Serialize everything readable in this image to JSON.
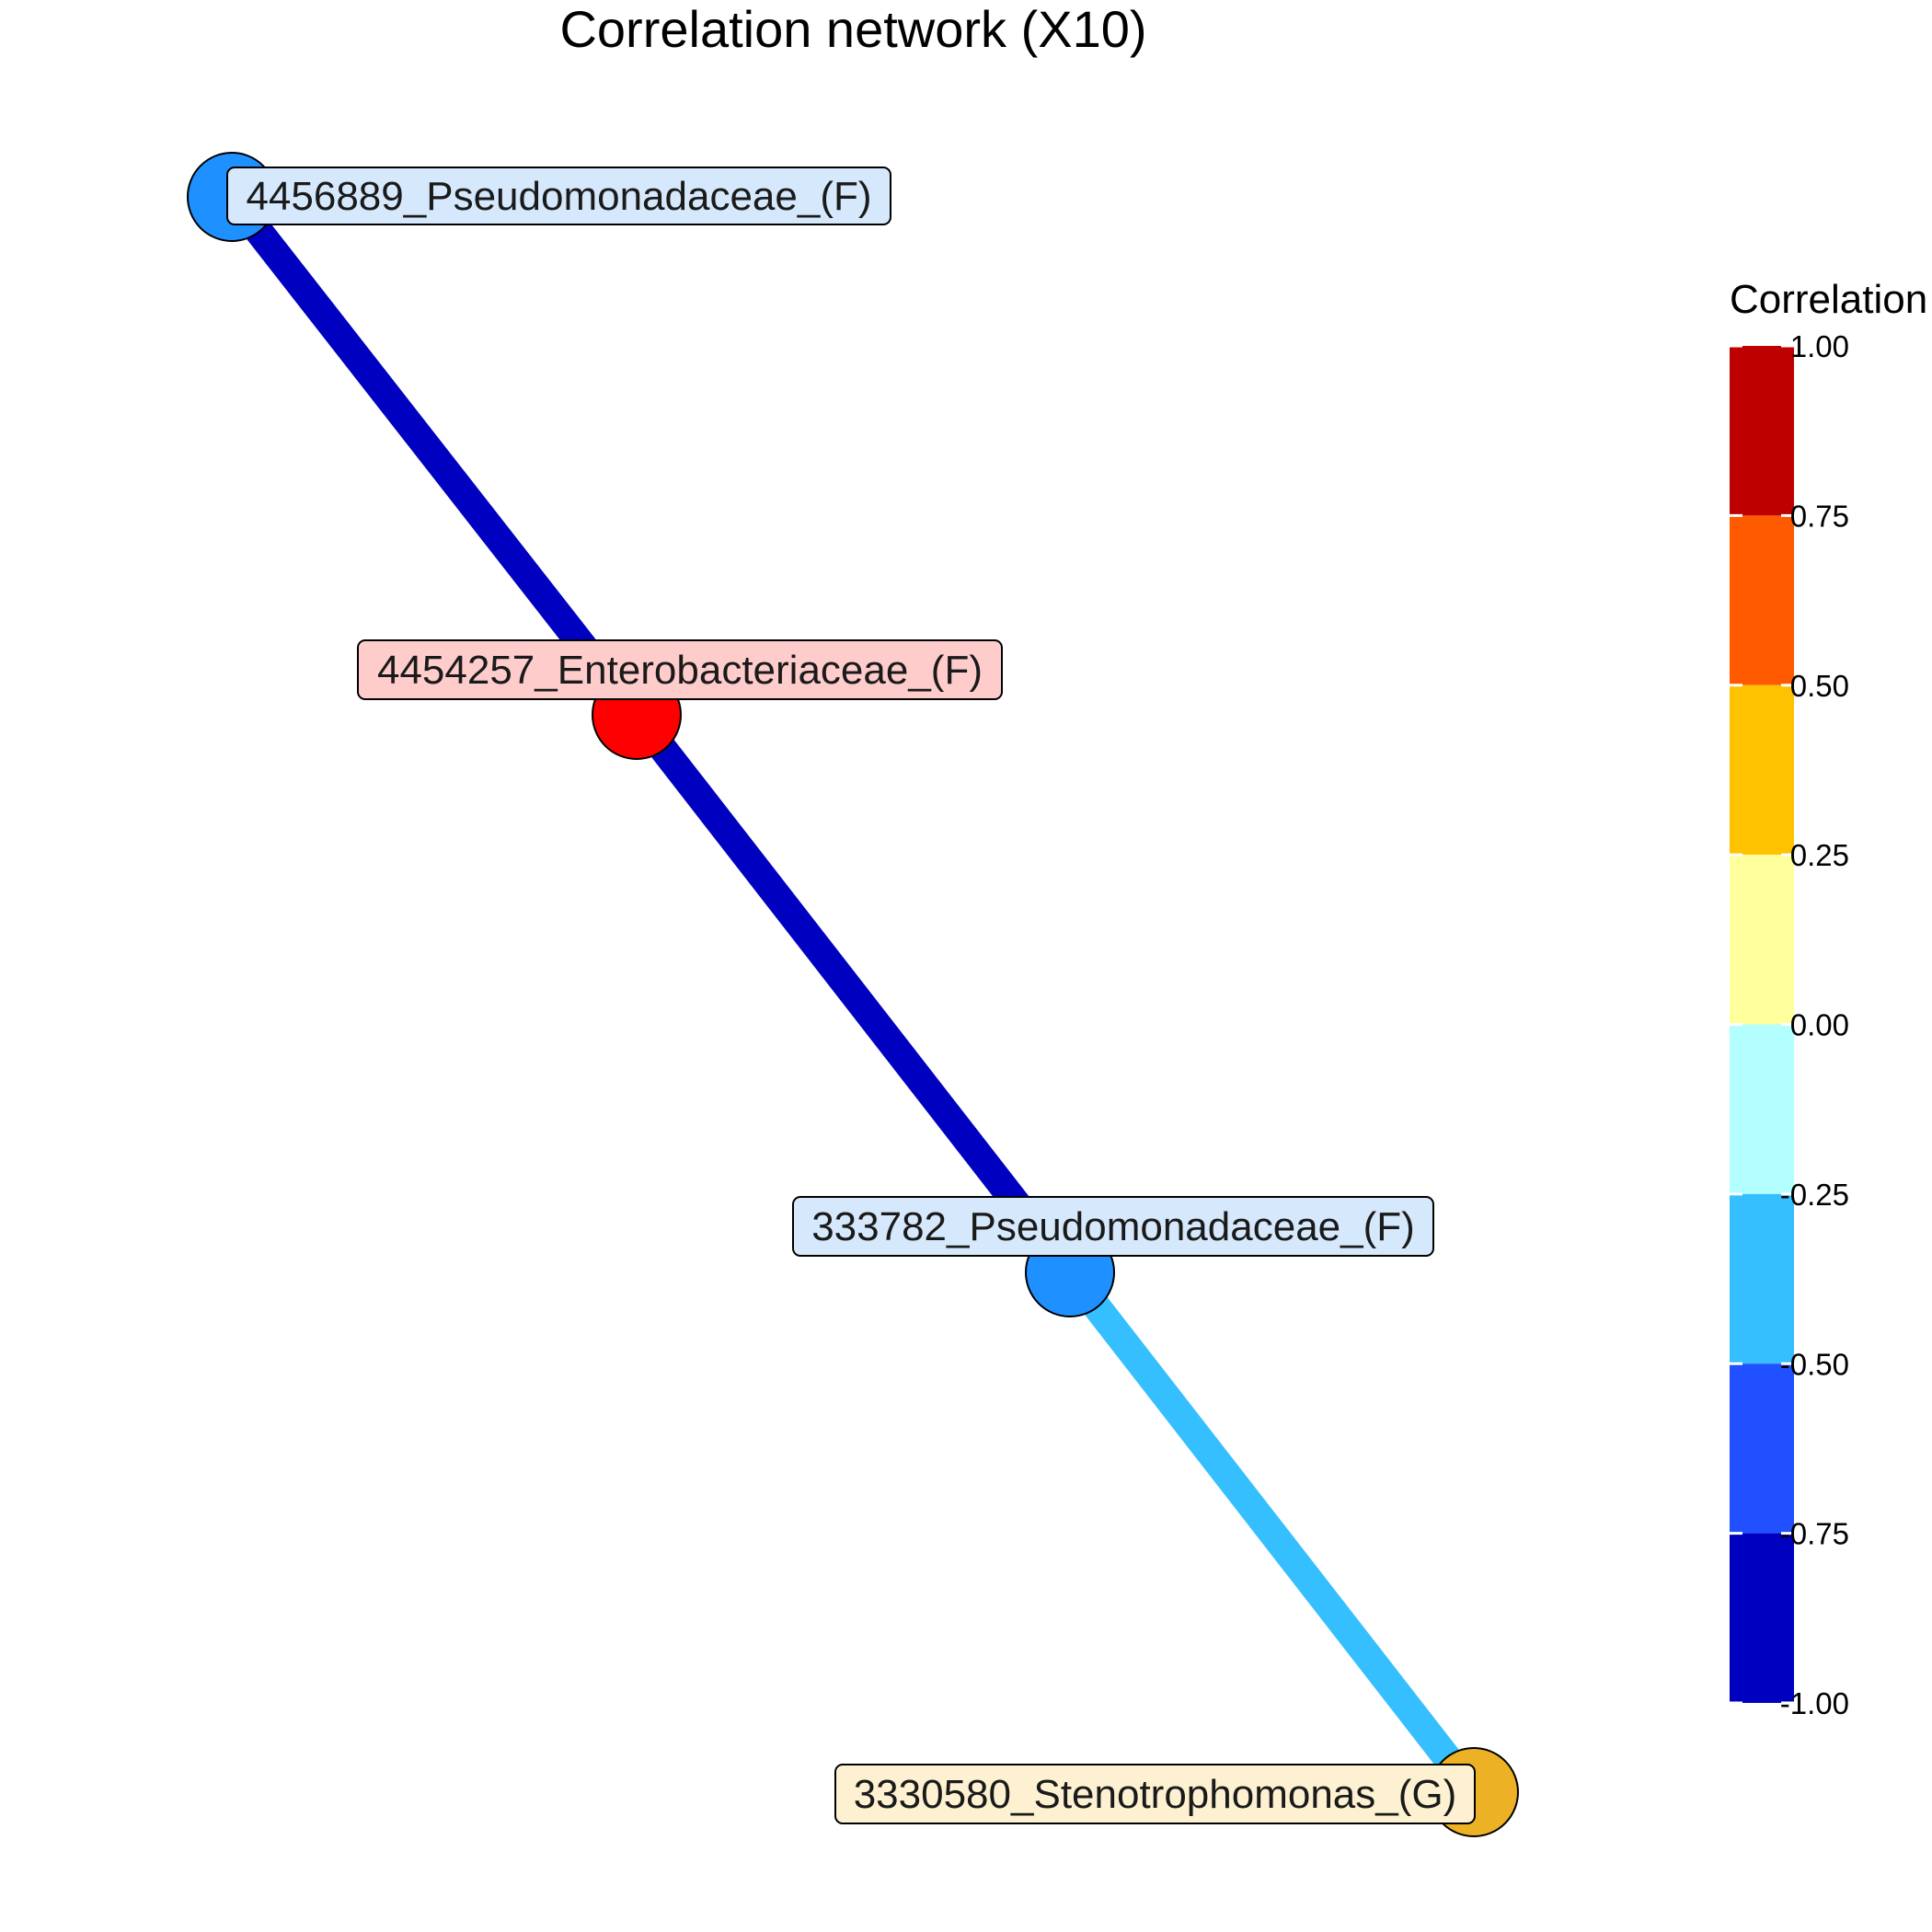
{
  "title": "Correlation network (X10)",
  "nodes": [
    {
      "id": "n1",
      "label": "4456889_Pseudomonadaceae_(F)",
      "fill": "#1e90ff",
      "label_bg": "#d5e8fc"
    },
    {
      "id": "n2",
      "label": "4454257_Enterobacteriaceae_(F)",
      "fill": "#ff0000",
      "label_bg": "#ffcccc"
    },
    {
      "id": "n3",
      "label": "333782_Pseudomonadaceae_(F)",
      "fill": "#1e90ff",
      "label_bg": "#d5e8fc"
    },
    {
      "id": "n4",
      "label": "3330580_Stenotrophomonas_(G)",
      "fill": "#ecb125",
      "label_bg": "#fdf1d2"
    }
  ],
  "edges": [
    {
      "from": "n1",
      "to": "n2",
      "color": "#0000c0"
    },
    {
      "from": "n2",
      "to": "n3",
      "color": "#0000c0"
    },
    {
      "from": "n3",
      "to": "n4",
      "color": "#35bfff"
    }
  ],
  "legend": {
    "title": "Correlation",
    "bins": [
      {
        "from": 0.75,
        "to": 1.0,
        "color": "#bf0000"
      },
      {
        "from": 0.5,
        "to": 0.75,
        "color": "#ff5a00"
      },
      {
        "from": 0.25,
        "to": 0.5,
        "color": "#ffc200"
      },
      {
        "from": 0.0,
        "to": 0.25,
        "color": "#ffff9d"
      },
      {
        "from": -0.25,
        "to": 0.0,
        "color": "#b3ffff"
      },
      {
        "from": -0.5,
        "to": -0.25,
        "color": "#35bfff"
      },
      {
        "from": -0.75,
        "to": -0.5,
        "color": "#2050ff"
      },
      {
        "from": -1.0,
        "to": -0.75,
        "color": "#0000c0"
      }
    ],
    "ticks": [
      "1.00",
      "0.75",
      "0.50",
      "0.25",
      "0.00",
      "-0.25",
      "-0.50",
      "-0.75",
      "-1.00"
    ]
  }
}
